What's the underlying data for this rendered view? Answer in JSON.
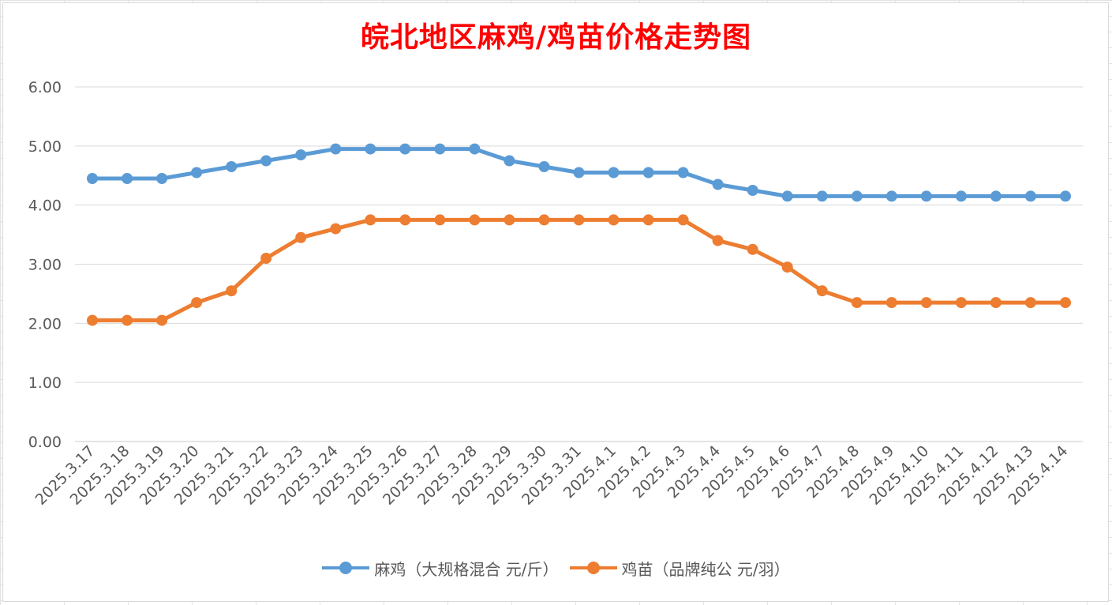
{
  "chart_data": {
    "type": "line",
    "title": "皖北地区麻鸡/鸡苗价格走势图",
    "categories": [
      "2025.3.17",
      "2025.3.18",
      "2025.3.19",
      "2025.3.20",
      "2025.3.21",
      "2025.3.22",
      "2025.3.23",
      "2025.3.24",
      "2025.3.25",
      "2025.3.26",
      "2025.3.27",
      "2025.3.28",
      "2025.3.29",
      "2025.3.30",
      "2025.3.31",
      "2025.4.1",
      "2025.4.2",
      "2025.4.3",
      "2025.4.4",
      "2025.4.5",
      "2025.4.6",
      "2025.4.7",
      "2025.4.8",
      "2025.4.9",
      "2025.4.10",
      "2025.4.11",
      "2025.4.12",
      "2025.4.13",
      "2025.4.14"
    ],
    "series": [
      {
        "name": "麻鸡（大规格混合 元/斤）",
        "color": "#5b9bd5",
        "values": [
          4.45,
          4.45,
          4.45,
          4.55,
          4.65,
          4.75,
          4.85,
          4.95,
          4.95,
          4.95,
          4.95,
          4.95,
          4.75,
          4.65,
          4.55,
          4.55,
          4.55,
          4.55,
          4.35,
          4.25,
          4.15,
          4.15,
          4.15,
          4.15,
          4.15,
          4.15,
          4.15,
          4.15,
          4.15
        ]
      },
      {
        "name": "鸡苗（品牌纯公 元/羽）",
        "color": "#ed7d31",
        "values": [
          2.05,
          2.05,
          2.05,
          2.35,
          2.55,
          3.1,
          3.45,
          3.6,
          3.75,
          3.75,
          3.75,
          3.75,
          3.75,
          3.75,
          3.75,
          3.75,
          3.75,
          3.75,
          3.4,
          3.25,
          2.95,
          2.55,
          2.35,
          2.35,
          2.35,
          2.35,
          2.35,
          2.35,
          2.35
        ]
      }
    ],
    "yticks": [
      "0.00",
      "1.00",
      "2.00",
      "3.00",
      "4.00",
      "5.00",
      "6.00"
    ],
    "ylim": [
      0,
      6
    ],
    "grid": true,
    "legend_position": "bottom"
  }
}
